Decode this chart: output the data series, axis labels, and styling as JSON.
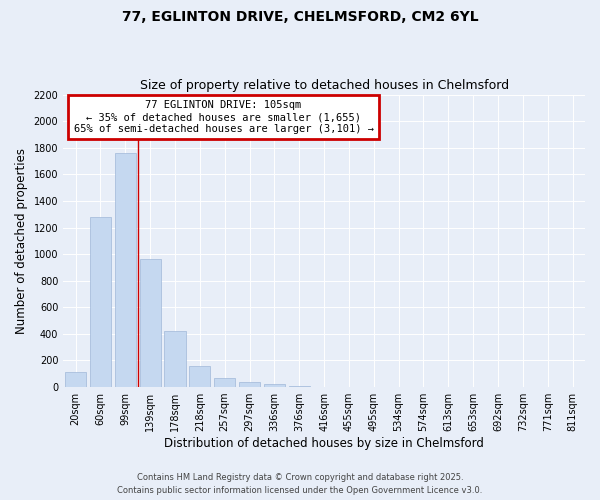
{
  "title": "77, EGLINTON DRIVE, CHELMSFORD, CM2 6YL",
  "subtitle": "Size of property relative to detached houses in Chelmsford",
  "xlabel": "Distribution of detached houses by size in Chelmsford",
  "ylabel": "Number of detached properties",
  "categories": [
    "20sqm",
    "60sqm",
    "99sqm",
    "139sqm",
    "178sqm",
    "218sqm",
    "257sqm",
    "297sqm",
    "336sqm",
    "376sqm",
    "416sqm",
    "455sqm",
    "495sqm",
    "534sqm",
    "574sqm",
    "613sqm",
    "653sqm",
    "692sqm",
    "732sqm",
    "771sqm",
    "811sqm"
  ],
  "values": [
    110,
    1280,
    1760,
    960,
    420,
    155,
    70,
    40,
    20,
    5,
    0,
    0,
    0,
    0,
    0,
    0,
    0,
    0,
    0,
    0,
    0
  ],
  "bar_color": "#c5d8f0",
  "bar_edgecolor": "#a0b8d8",
  "vline_x_index": 2,
  "vline_color": "#cc0000",
  "annotation_text": "77 EGLINTON DRIVE: 105sqm\n← 35% of detached houses are smaller (1,655)\n65% of semi-detached houses are larger (3,101) →",
  "annotation_box_color": "#cc0000",
  "annotation_text_color": "#000000",
  "ylim": [
    0,
    2200
  ],
  "yticks": [
    0,
    200,
    400,
    600,
    800,
    1000,
    1200,
    1400,
    1600,
    1800,
    2000,
    2200
  ],
  "bg_color": "#e8eef8",
  "grid_color": "#ffffff",
  "title_fontsize": 10,
  "subtitle_fontsize": 9,
  "tick_fontsize": 7,
  "label_fontsize": 8.5,
  "footer_line1": "Contains HM Land Registry data © Crown copyright and database right 2025.",
  "footer_line2": "Contains public sector information licensed under the Open Government Licence v3.0."
}
